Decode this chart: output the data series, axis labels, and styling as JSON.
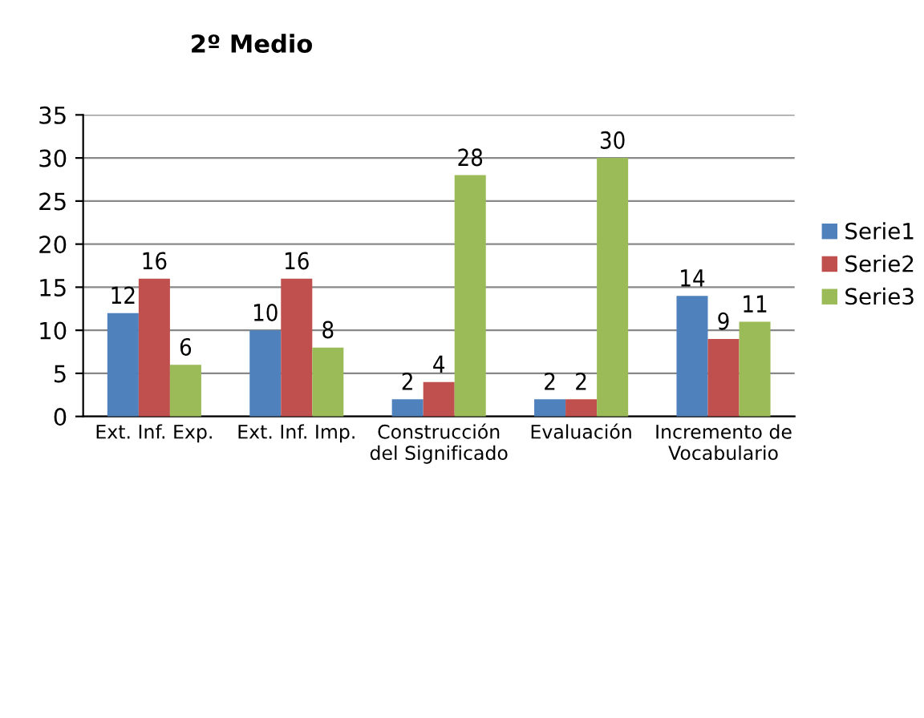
{
  "chart_data": {
    "type": "bar",
    "title": "2º Medio",
    "categories": [
      "Ext. Inf. Exp.",
      "Ext. Inf. Imp.",
      "Construcción\ndel Significado",
      "Evaluación",
      "Incremento de\nVocabulario"
    ],
    "series": [
      {
        "name": "Serie1",
        "color": "#4f81bd",
        "values": [
          12,
          10,
          2,
          2,
          14
        ]
      },
      {
        "name": "Serie2",
        "color": "#c0504d",
        "values": [
          16,
          16,
          4,
          2,
          9
        ]
      },
      {
        "name": "Serie3",
        "color": "#9bbb59",
        "values": [
          6,
          8,
          28,
          30,
          11
        ]
      }
    ],
    "ylim": [
      0,
      35
    ],
    "yticks": [
      0,
      5,
      10,
      15,
      20,
      25,
      30,
      35
    ],
    "grid": "y",
    "legend": "right",
    "data_labels": true
  }
}
